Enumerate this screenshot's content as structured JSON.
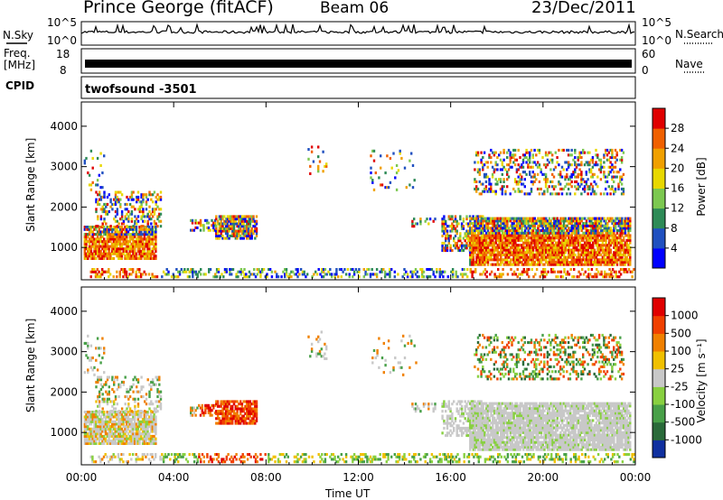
{
  "header": {
    "station": "Prince George (fitACF)",
    "beam": "Beam 06",
    "date": "23/Dec/2011"
  },
  "noise_panel": {
    "left_label": "N.Sky",
    "right_label": "N.Search",
    "top_tick": "10^5",
    "bottom_tick": "10^0",
    "scale": "log"
  },
  "freq_panel": {
    "left_label_line1": "Freq.",
    "left_label_line2": "[MHz]",
    "left_top_tick": "18",
    "left_bottom_tick": "8",
    "right_label": "Nave",
    "right_top_tick": "60",
    "right_bottom_tick": "0"
  },
  "cpid_panel": {
    "label": "CPID",
    "program": "twofsound",
    "id": "-3501"
  },
  "chart_data": [
    {
      "type": "heatmap",
      "ylabel": "Slant Range [km]",
      "ylim": [
        200,
        4600
      ],
      "yticks": [
        "1000",
        "2000",
        "3000",
        "4000"
      ],
      "xticks": [
        "00:00",
        "04:00",
        "08:00",
        "12:00",
        "16:00",
        "20:00",
        "00:00"
      ],
      "colorbar": {
        "label": "Power [dB]",
        "ticks": [
          "4",
          "8",
          "12",
          "16",
          "20",
          "24",
          "28"
        ],
        "colors": [
          "#0000ff",
          "#2050c0",
          "#2e8b57",
          "#7cc850",
          "#e8d800",
          "#f0a000",
          "#f06000",
          "#e00000"
        ]
      }
    },
    {
      "type": "heatmap",
      "ylabel": "Slant Range [km]",
      "ylim": [
        200,
        4600
      ],
      "yticks": [
        "1000",
        "2000",
        "3000",
        "4000"
      ],
      "xticks": [
        "00:00",
        "04:00",
        "08:00",
        "12:00",
        "16:00",
        "20:00",
        "00:00"
      ],
      "xlabel": "Time UT",
      "colorbar": {
        "label": "Velocity [m s⁻¹]",
        "ticks": [
          "1000",
          "500",
          "100",
          "25",
          "-25",
          "-100",
          "-500",
          "-1000"
        ],
        "colors": [
          "#1030a0",
          "#2a6a3a",
          "#48a048",
          "#88d040",
          "#c8c8c8",
          "#f0c000",
          "#f08000",
          "#f04000",
          "#e00000"
        ]
      }
    }
  ]
}
